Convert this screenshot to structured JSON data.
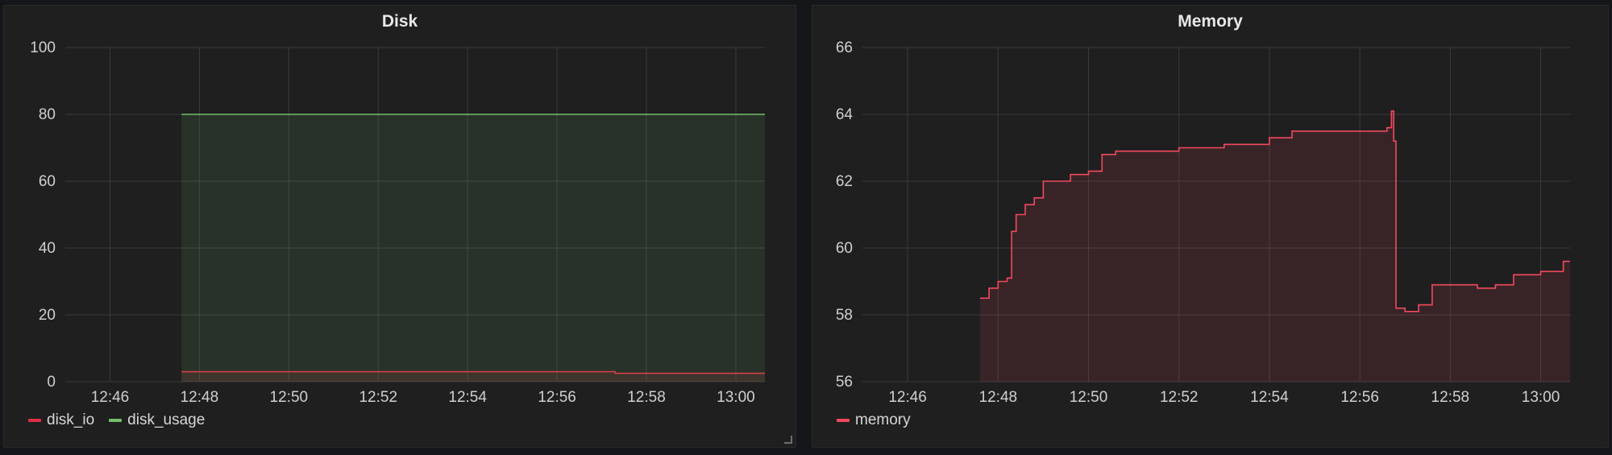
{
  "chart_data": [
    {
      "type": "area",
      "title": "Disk",
      "x_ticks": [
        "12:46",
        "12:48",
        "12:50",
        "12:52",
        "12:54",
        "12:56",
        "12:58",
        "13:00"
      ],
      "xlim": [
        "12:45.0",
        "13:00.65"
      ],
      "ylim": [
        0,
        100
      ],
      "y_ticks": [
        0,
        20,
        40,
        60,
        80,
        100
      ],
      "grid": true,
      "legend_position": "bottom-left",
      "series": [
        {
          "name": "disk_io",
          "color": "#e02f44",
          "x": [
            "12:47.6",
            "12:57.3",
            "12:57.5",
            "13:00.65"
          ],
          "values": [
            3,
            2.5,
            2.5,
            2.5
          ]
        },
        {
          "name": "disk_usage",
          "color": "#73bf69",
          "x": [
            "12:47.6",
            "13:00.65"
          ],
          "values": [
            80,
            80
          ]
        }
      ]
    },
    {
      "type": "area",
      "title": "Memory",
      "x_ticks": [
        "12:46",
        "12:48",
        "12:50",
        "12:52",
        "12:54",
        "12:56",
        "12:58",
        "13:00"
      ],
      "xlim": [
        "12:45.0",
        "13:00.65"
      ],
      "ylim": [
        56,
        66
      ],
      "y_ticks": [
        56,
        58,
        60,
        62,
        64,
        66
      ],
      "grid": true,
      "legend_position": "bottom-left",
      "series": [
        {
          "name": "memory",
          "color": "#f2495c",
          "x": [
            "12:47.6",
            "12:47.8",
            "12:48.0",
            "12:48.2",
            "12:48.3",
            "12:48.4",
            "12:48.6",
            "12:48.8",
            "12:49.0",
            "12:49.3",
            "12:49.6",
            "12:50.0",
            "12:50.3",
            "12:50.6",
            "12:51.0",
            "12:52.0",
            "12:53.0",
            "12:54.0",
            "12:54.5",
            "12:55.5",
            "12:56.3",
            "12:56.6",
            "12:56.7",
            "12:56.75",
            "12:56.8",
            "12:57.0",
            "12:57.3",
            "12:57.6",
            "12:58.0",
            "12:58.6",
            "12:59.0",
            "12:59.4",
            "13:00.0",
            "13:00.3",
            "13:00.5",
            "13:00.65"
          ],
          "values": [
            58.5,
            58.8,
            59.0,
            59.1,
            60.5,
            61.0,
            61.3,
            61.5,
            62.0,
            62.0,
            62.2,
            62.3,
            62.8,
            62.9,
            62.9,
            63.0,
            63.1,
            63.3,
            63.5,
            63.5,
            63.5,
            63.6,
            64.1,
            63.2,
            58.2,
            58.1,
            58.3,
            58.9,
            58.9,
            58.8,
            58.9,
            59.2,
            59.3,
            59.3,
            59.6,
            59.6
          ]
        }
      ]
    }
  ]
}
